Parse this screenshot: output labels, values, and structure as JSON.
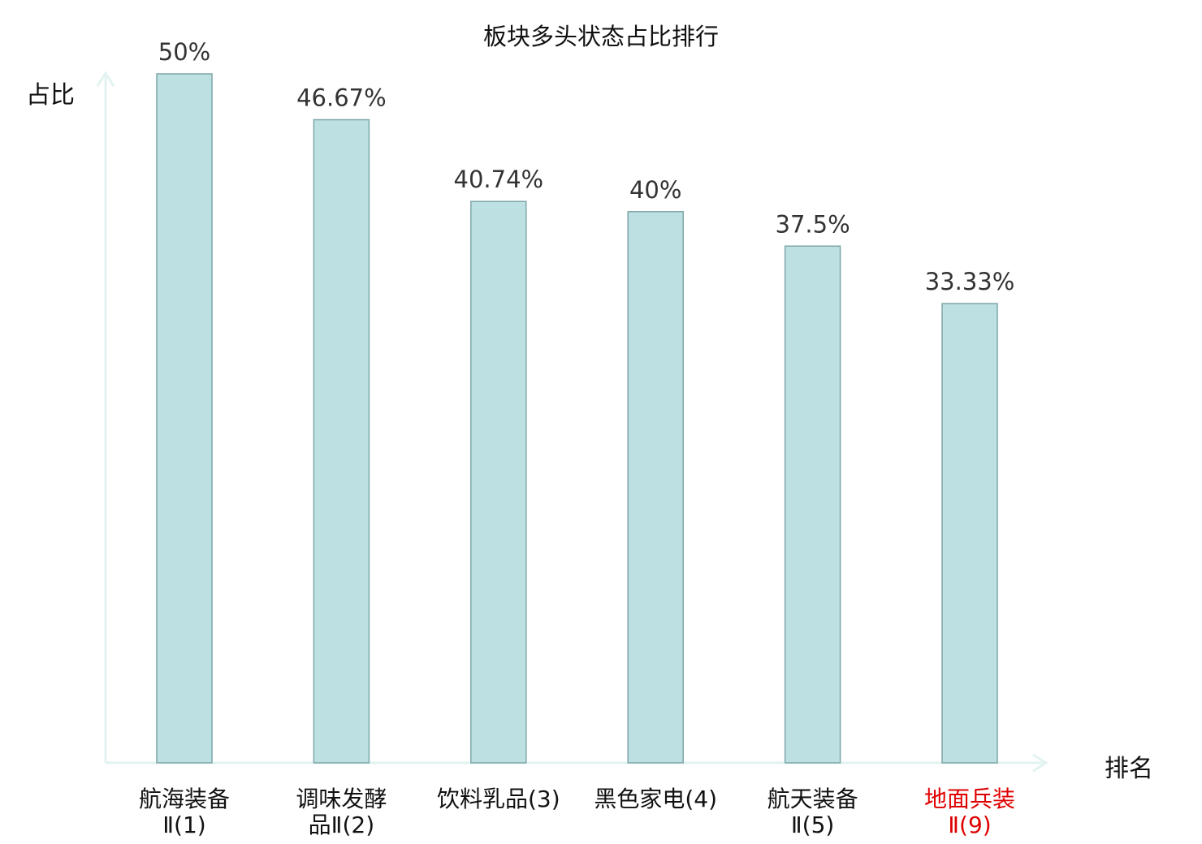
{
  "chart_data": {
    "type": "bar",
    "title": "板块多头状态占比排行",
    "ylabel": "占比",
    "xlabel": "排名",
    "categories": [
      [
        "航海装备",
        "Ⅱ(1)"
      ],
      [
        "调味发酵",
        "品Ⅱ(2)"
      ],
      [
        "饮料乳品(3)"
      ],
      [
        "黑色家电(4)"
      ],
      [
        "航天装备",
        "Ⅱ(5)"
      ],
      [
        "地面兵装",
        "Ⅱ(9)"
      ]
    ],
    "values": [
      50,
      46.67,
      40.74,
      40,
      37.5,
      33.33
    ],
    "value_labels": [
      "50%",
      "46.67%",
      "40.74%",
      "40%",
      "37.5%",
      "33.33%"
    ],
    "highlight_index": 5,
    "ylim": [
      0,
      50
    ],
    "grid": false,
    "colors": {
      "bar_fill": "#bde0e2",
      "bar_stroke": "#7fa6a8",
      "axis": "#e2f3f1",
      "label_text": "#333333",
      "category_text": "#111111",
      "highlight_text": "#e00000"
    }
  }
}
